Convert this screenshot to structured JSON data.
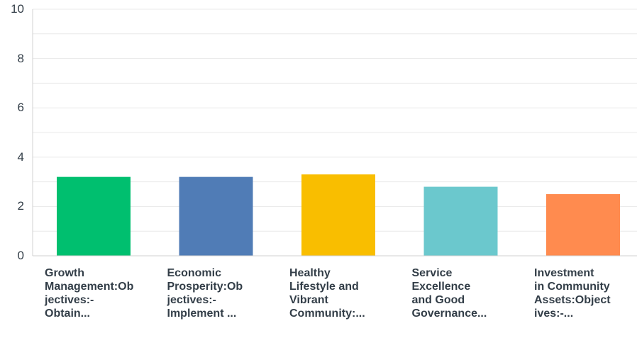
{
  "chart_data": {
    "type": "bar",
    "categories": [
      "Growth\nManagement:Ob\njectives:-\nObtain...",
      "Economic\nProsperity:Ob\njectives:-\nImplement ...",
      "Healthy\nLifestyle and\nVibrant\nCommunity:...",
      "Service\nExcellence\nand Good\nGovernance...",
      "Investment\nin Community\nAssets:Object\nives:-..."
    ],
    "values": [
      3.2,
      3.2,
      3.3,
      2.8,
      2.5
    ],
    "colors": [
      "#00bf6f",
      "#507cb6",
      "#f9be00",
      "#6bc8cd",
      "#ff8b4f"
    ],
    "ylim": [
      0,
      10
    ],
    "yticks": [
      "0",
      "2",
      "4",
      "6",
      "8",
      "10"
    ],
    "grid": true,
    "title": "",
    "xlabel": "",
    "ylabel": ""
  }
}
